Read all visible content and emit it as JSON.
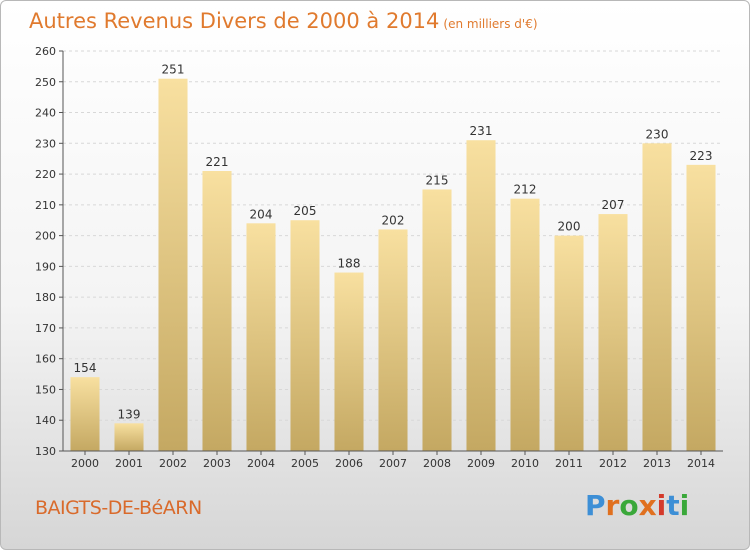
{
  "header": {
    "title": "Autres Revenus Divers de 2000 à 2014",
    "unit": "(en milliers d'€)"
  },
  "footer": {
    "place": "BAIGTS-DE-BéARN",
    "logo": {
      "letters": [
        "P",
        "r",
        "o",
        "x",
        "i",
        "t",
        "i"
      ],
      "colors": [
        "#3d8fd6",
        "#e0701f",
        "#3aa83a",
        "#e0701f",
        "#d43a2b",
        "#3d8fd6",
        "#3aa83a"
      ]
    }
  },
  "colors": {
    "bar_light": "#f8e0a0",
    "bar_dark": "#c4a862",
    "axis": "#555555",
    "grid": "#d8d8d8"
  },
  "chart_data": {
    "type": "bar",
    "categories": [
      "2000",
      "2001",
      "2002",
      "2003",
      "2004",
      "2005",
      "2006",
      "2007",
      "2008",
      "2009",
      "2010",
      "2011",
      "2012",
      "2013",
      "2014"
    ],
    "values": [
      154,
      139,
      251,
      221,
      204,
      205,
      188,
      202,
      215,
      231,
      212,
      200,
      207,
      230,
      223
    ],
    "ylim": [
      130,
      260
    ],
    "yticks": [
      130,
      140,
      150,
      160,
      170,
      180,
      190,
      200,
      210,
      220,
      230,
      240,
      250,
      260
    ],
    "grid": true,
    "data_labels": true
  }
}
